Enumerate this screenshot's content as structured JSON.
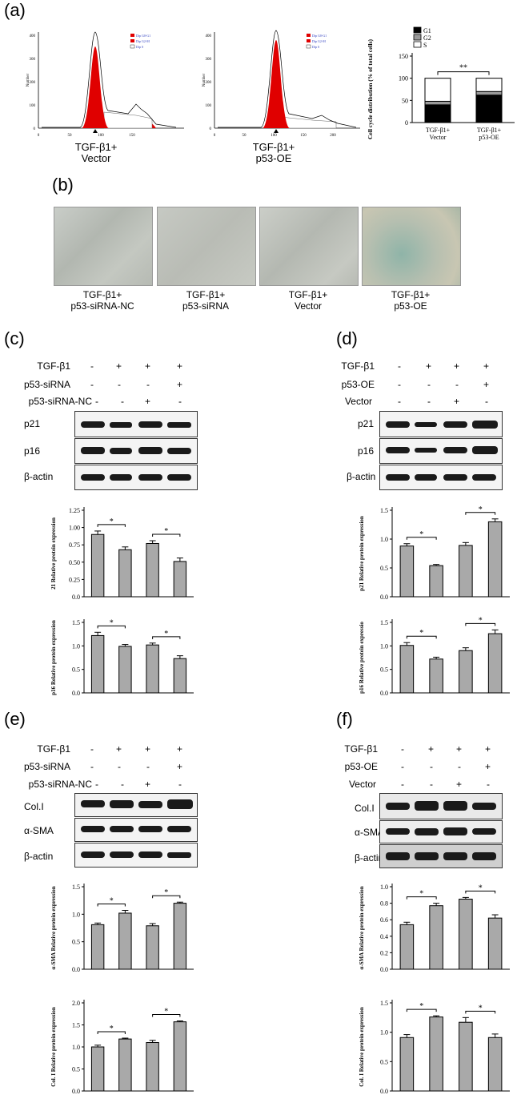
{
  "panel_a": {
    "label": "(a)",
    "flow_legend": [
      "Dip G0-G1",
      "Dip G2-M",
      "Dip S"
    ],
    "flow_ylabel": "Number",
    "flow1": {
      "yticks": [
        "0",
        "100",
        "200",
        "300",
        "400"
      ],
      "xticks": [
        "0",
        "50",
        "100",
        "150"
      ],
      "caption1": "TGF-β1+",
      "caption2": "Vector"
    },
    "flow2": {
      "yticks": [
        "0",
        "100",
        "200",
        "300",
        "400"
      ],
      "xticks": [
        "0",
        "50",
        "100",
        "150",
        "200"
      ],
      "caption1": "TGF-β1+",
      "caption2": "p53-OE"
    }
  },
  "panel_b": {
    "label": "(b)",
    "images": [
      {
        "line1": "TGF-β1+",
        "line2": "p53-siRNA-NC"
      },
      {
        "line1": "TGF-β1+",
        "line2": "p53-siRNA"
      },
      {
        "line1": "TGF-β1+",
        "line2": "Vector"
      },
      {
        "line1": "TGF-β1+",
        "line2": "p53-OE"
      }
    ]
  },
  "panel_c": {
    "label": "(c)",
    "rows": [
      {
        "name": "TGF-β1",
        "signs": [
          "-",
          "+",
          "+",
          "+"
        ]
      },
      {
        "name": "p53-siRNA",
        "signs": [
          "-",
          "-",
          "-",
          "+"
        ]
      },
      {
        "name": "p53-siRNA-NC",
        "signs": [
          "-",
          "-",
          "+",
          "-"
        ]
      }
    ],
    "blots": [
      "p21",
      "p16",
      "β-actin"
    ]
  },
  "panel_d": {
    "label": "(d)",
    "rows": [
      {
        "name": "TGF-β1",
        "signs": [
          "-",
          "+",
          "+",
          "+"
        ]
      },
      {
        "name": "p53-OE",
        "signs": [
          "-",
          "-",
          "-",
          "+"
        ]
      },
      {
        "name": "Vector",
        "signs": [
          "-",
          "-",
          "+",
          "-"
        ]
      }
    ],
    "blots": [
      "p21",
      "p16",
      "β-actin"
    ]
  },
  "panel_e": {
    "label": "(e)",
    "rows": [
      {
        "name": "TGF-β1",
        "signs": [
          "-",
          "+",
          "+",
          "+"
        ]
      },
      {
        "name": "p53-siRNA",
        "signs": [
          "-",
          "-",
          "-",
          "+"
        ]
      },
      {
        "name": "p53-siRNA-NC",
        "signs": [
          "-",
          "-",
          "+",
          "-"
        ]
      }
    ],
    "blots": [
      "Col.I",
      "α-SMA",
      "β-actin"
    ]
  },
  "panel_f": {
    "label": "(f)",
    "rows": [
      {
        "name": "TGF-β1",
        "signs": [
          "-",
          "+",
          "+",
          "+"
        ]
      },
      {
        "name": "p53-OE",
        "signs": [
          "-",
          "-",
          "-",
          "+"
        ]
      },
      {
        "name": "Vector",
        "signs": [
          "-",
          "-",
          "+",
          "-"
        ]
      }
    ],
    "blots": [
      "Col.I",
      "α-SMA",
      "β-actin"
    ]
  },
  "chart_data": [
    {
      "id": "cc",
      "type": "bar",
      "stacked": true,
      "categories": [
        "TGF-β1+ Vector",
        "TGF-β1+ p53-OE"
      ],
      "series": [
        {
          "name": "G1",
          "values": [
            40,
            62
          ],
          "color": "#000000"
        },
        {
          "name": "G2",
          "values": [
            8,
            8
          ],
          "color": "#999999"
        },
        {
          "name": "S",
          "values": [
            52,
            30
          ],
          "color": "#ffffff"
        }
      ],
      "ylabel": "Cell cycle distribution (% of total cells)",
      "ylim": [
        0,
        150
      ],
      "yticks": [
        0,
        50,
        100,
        150
      ],
      "significance": [
        {
          "between": [
            0,
            1
          ],
          "label": "**"
        }
      ],
      "legend": "top-right"
    },
    {
      "id": "c1",
      "type": "bar",
      "categories": [
        "",
        "",
        "",
        ""
      ],
      "values": [
        0.9,
        0.68,
        0.77,
        0.51
      ],
      "errors": [
        0.05,
        0.04,
        0.04,
        0.05
      ],
      "ylabel": "21 Relative protein expression",
      "ylim": [
        0,
        1.25
      ],
      "yticks": [
        "0.0",
        "0.25",
        "0.50",
        "0.75",
        "1.00",
        "1.25"
      ],
      "significance": [
        {
          "between": [
            0,
            1
          ],
          "label": "*"
        },
        {
          "between": [
            2,
            3
          ],
          "label": "*"
        }
      ]
    },
    {
      "id": "c2",
      "type": "bar",
      "categories": [
        "",
        "",
        "",
        ""
      ],
      "values": [
        1.22,
        0.99,
        1.02,
        0.73
      ],
      "errors": [
        0.07,
        0.04,
        0.04,
        0.06
      ],
      "ylabel": "p16 Relative protein expression",
      "ylim": [
        0,
        1.5
      ],
      "yticks": [
        "0.0",
        "0.5",
        "1.0",
        "1.5"
      ],
      "significance": [
        {
          "between": [
            0,
            1
          ],
          "label": "*"
        },
        {
          "between": [
            2,
            3
          ],
          "label": "*"
        }
      ]
    },
    {
      "id": "d1",
      "type": "bar",
      "categories": [
        "",
        "",
        "",
        ""
      ],
      "values": [
        0.88,
        0.54,
        0.89,
        1.3
      ],
      "errors": [
        0.04,
        0.02,
        0.05,
        0.05
      ],
      "ylabel": "p21 Relative protein expression",
      "ylim": [
        0,
        1.5
      ],
      "yticks": [
        "0.0",
        "0.5",
        "1.0",
        "1.5"
      ],
      "significance": [
        {
          "between": [
            0,
            1
          ],
          "label": "*"
        },
        {
          "between": [
            2,
            3
          ],
          "label": "*"
        }
      ]
    },
    {
      "id": "d2",
      "type": "bar",
      "categories": [
        "",
        "",
        "",
        ""
      ],
      "values": [
        1.01,
        0.72,
        0.9,
        1.26
      ],
      "errors": [
        0.06,
        0.04,
        0.06,
        0.08
      ],
      "ylabel": "p16 Relative protein expressio",
      "ylim": [
        0,
        1.5
      ],
      "yticks": [
        "0.0",
        "0.5",
        "1.0",
        "1.5"
      ],
      "significance": [
        {
          "between": [
            0,
            1
          ],
          "label": "*"
        },
        {
          "between": [
            2,
            3
          ],
          "label": "*"
        }
      ]
    },
    {
      "id": "e1",
      "type": "bar",
      "categories": [
        "",
        "",
        "",
        ""
      ],
      "values": [
        0.81,
        1.02,
        0.79,
        1.2
      ],
      "errors": [
        0.03,
        0.05,
        0.04,
        0.02
      ],
      "ylabel": "α-SMA Relative protein expression",
      "ylim": [
        0,
        1.5
      ],
      "yticks": [
        "0.0",
        "0.5",
        "1.0",
        "1.5"
      ],
      "significance": [
        {
          "between": [
            0,
            1
          ],
          "label": "*"
        },
        {
          "between": [
            2,
            3
          ],
          "label": "*"
        }
      ]
    },
    {
      "id": "e2",
      "type": "bar",
      "categories": [
        "",
        "",
        "",
        ""
      ],
      "values": [
        1.0,
        1.18,
        1.1,
        1.57
      ],
      "errors": [
        0.04,
        0.02,
        0.05,
        0.02
      ],
      "ylabel": "Col. I Relative protein expression",
      "ylim": [
        0,
        2.0
      ],
      "yticks": [
        "0.0",
        "0.5",
        "1.0",
        "1.5",
        "2.0"
      ],
      "significance": [
        {
          "between": [
            0,
            1
          ],
          "label": "*"
        },
        {
          "between": [
            2,
            3
          ],
          "label": "*"
        }
      ]
    },
    {
      "id": "f1",
      "type": "bar",
      "categories": [
        "",
        "",
        "",
        ""
      ],
      "values": [
        0.54,
        0.77,
        0.85,
        0.62
      ],
      "errors": [
        0.03,
        0.03,
        0.02,
        0.04
      ],
      "ylabel": "α-SMA Relative protein expression",
      "ylim": [
        0,
        1.0
      ],
      "yticks": [
        "0.0",
        "0.2",
        "0.4",
        "0.6",
        "0.8",
        "1.0"
      ],
      "significance": [
        {
          "between": [
            0,
            1
          ],
          "label": "*"
        },
        {
          "between": [
            2,
            3
          ],
          "label": "*"
        }
      ]
    },
    {
      "id": "f2",
      "type": "bar",
      "categories": [
        "",
        "",
        "",
        ""
      ],
      "values": [
        0.91,
        1.26,
        1.17,
        0.91
      ],
      "errors": [
        0.05,
        0.02,
        0.08,
        0.06
      ],
      "ylabel": "Col. I Relative protein expression",
      "ylim": [
        0,
        1.5
      ],
      "yticks": [
        "0.0",
        "0.5",
        "1.0",
        "1.5"
      ],
      "significance": [
        {
          "between": [
            0,
            1
          ],
          "label": "*"
        },
        {
          "between": [
            2,
            3
          ],
          "label": "*"
        }
      ]
    }
  ]
}
